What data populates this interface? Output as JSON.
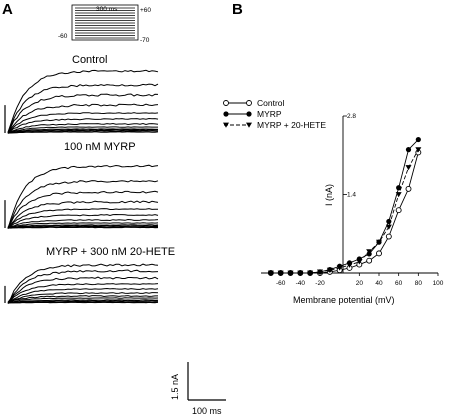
{
  "panel_a": {
    "letter": "A",
    "protocol": {
      "duration_label": "300 ms",
      "top_label": "+60",
      "left_label": "-60",
      "right_label": "-70"
    },
    "conditions": [
      "Control",
      "100 nM MYRP",
      "MYRP + 300 nM 20-HETE"
    ],
    "scale_bar": {
      "current": "1.5 nA",
      "time": "100 ms"
    }
  },
  "chart_data": {
    "type": "line",
    "panel_letter": "B",
    "xlabel": "Membrane potential (mV)",
    "ylabel": "I (nA)",
    "xlim": [
      -80,
      100
    ],
    "ylim": [
      -0.15,
      2.8
    ],
    "x_ticks": [
      -60,
      -40,
      -20,
      20,
      40,
      60,
      80,
      100
    ],
    "y_ticks": [
      1.4,
      2.8
    ],
    "grid": false,
    "legend_position": "top-left",
    "x": [
      -70,
      -60,
      -50,
      -40,
      -30,
      -20,
      -10,
      0,
      10,
      20,
      30,
      40,
      50,
      60,
      70,
      80
    ],
    "series": [
      {
        "name": "Control",
        "marker": "open-circle",
        "values": [
          0.0,
          0.0,
          0.0,
          0.0,
          0.0,
          0.0,
          0.02,
          0.05,
          0.09,
          0.15,
          0.22,
          0.35,
          0.65,
          1.12,
          1.5,
          2.15
        ]
      },
      {
        "name": "MYRP",
        "marker": "filled-circle",
        "values": [
          0.0,
          0.0,
          0.0,
          0.0,
          0.0,
          0.02,
          0.06,
          0.12,
          0.18,
          0.25,
          0.34,
          0.55,
          0.92,
          1.52,
          2.2,
          2.38
        ]
      },
      {
        "name": "MYRP + 20-HETE",
        "marker": "filled-triangle",
        "values": [
          0.0,
          0.0,
          0.0,
          0.0,
          0.0,
          0.02,
          0.05,
          0.09,
          0.14,
          0.2,
          0.38,
          0.55,
          0.82,
          1.4,
          1.88,
          2.2
        ]
      }
    ]
  }
}
